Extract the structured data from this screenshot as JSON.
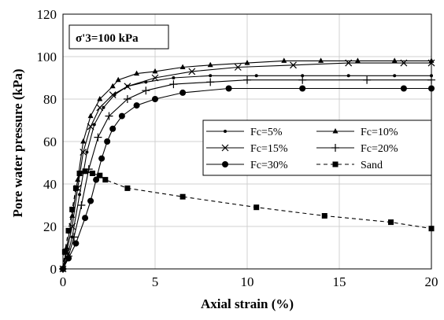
{
  "chart_data": {
    "type": "line",
    "xlabel": "Axial strain (%)",
    "ylabel": "Pore water pressure (kPa)",
    "xlim": [
      0,
      20
    ],
    "ylim": [
      0,
      120
    ],
    "xticks": [
      "0",
      "5",
      "10",
      "15",
      "20"
    ],
    "yticks": [
      "0",
      "20",
      "40",
      "60",
      "80",
      "100",
      "120"
    ],
    "grid": true,
    "legend_position": "center-right",
    "annotation": "σ'3=100 kPa",
    "series": [
      {
        "name": "Fc=5%",
        "marker": "dot",
        "dash": "solid",
        "x": [
          0,
          0.2,
          0.5,
          0.9,
          1.3,
          1.7,
          2.2,
          2.8,
          3.5,
          4.5,
          6,
          8,
          10.5,
          13,
          15.5,
          18,
          20
        ],
        "y": [
          0,
          5,
          15,
          35,
          55,
          68,
          76,
          82,
          86,
          88,
          90,
          91,
          91,
          91,
          91,
          91,
          91
        ]
      },
      {
        "name": "Fc=10%",
        "marker": "triangle",
        "dash": "solid",
        "x": [
          0,
          0.2,
          0.5,
          0.8,
          1.1,
          1.5,
          2.0,
          2.7,
          3.0,
          4.0,
          5.0,
          6.5,
          8.0,
          10.0,
          12.0,
          14.0,
          16.0,
          18.0,
          20.0
        ],
        "y": [
          0,
          10,
          25,
          42,
          60,
          72,
          80,
          86,
          89,
          92,
          93,
          95,
          96,
          97,
          98,
          98,
          98,
          98,
          98
        ]
      },
      {
        "name": "Fc=15%",
        "marker": "x",
        "dash": "solid",
        "x": [
          0,
          0.2,
          0.5,
          0.8,
          1.1,
          1.5,
          2.0,
          2.7,
          3.5,
          5.0,
          7.0,
          9.5,
          12.5,
          15.5,
          18.5,
          20.0
        ],
        "y": [
          0,
          8,
          20,
          38,
          55,
          67,
          76,
          82,
          86,
          90,
          93,
          95,
          96,
          97,
          97,
          97
        ]
      },
      {
        "name": "Fc=20%",
        "marker": "plus",
        "dash": "solid",
        "x": [
          0,
          0.3,
          0.6,
          1.0,
          1.4,
          1.9,
          2.5,
          3.5,
          4.5,
          6.0,
          8.0,
          10.0,
          13.0,
          16.5,
          20.0
        ],
        "y": [
          0,
          6,
          15,
          30,
          47,
          62,
          72,
          80,
          84,
          87,
          88,
          89,
          89,
          89,
          89
        ]
      },
      {
        "name": "Fc=30%",
        "marker": "circle",
        "dash": "solid",
        "x": [
          0,
          0.3,
          0.7,
          1.2,
          1.5,
          1.8,
          2.1,
          2.4,
          2.7,
          3.2,
          4.0,
          5.0,
          6.5,
          9.0,
          13.0,
          18.5,
          20.0
        ],
        "y": [
          0,
          5,
          12,
          24,
          32,
          42,
          52,
          60,
          66,
          72,
          77,
          80,
          83,
          85,
          85,
          85,
          85
        ]
      },
      {
        "name": "Sand",
        "marker": "square",
        "dash": "dashed",
        "x": [
          0,
          0.1,
          0.3,
          0.5,
          0.7,
          0.9,
          1.2,
          1.6,
          2.0,
          2.3,
          3.5,
          6.5,
          10.5,
          14.2,
          17.8,
          20.0
        ],
        "y": [
          0,
          8,
          18,
          28,
          38,
          45,
          46,
          45,
          44,
          42,
          38,
          34,
          29,
          25,
          22,
          19
        ]
      }
    ]
  }
}
